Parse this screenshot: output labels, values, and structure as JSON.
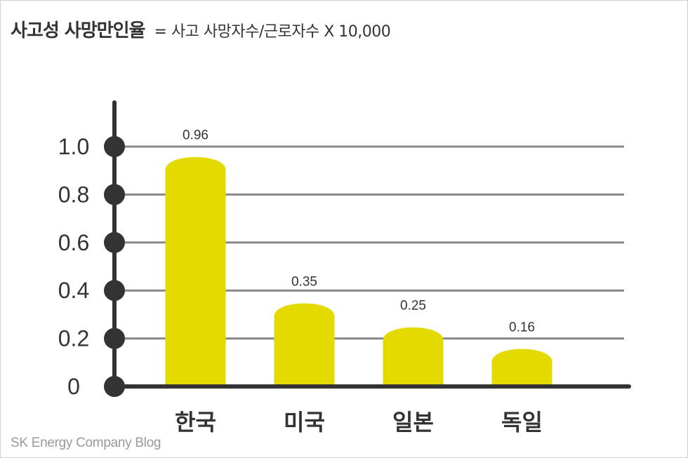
{
  "title": "사고성 사망만인율",
  "formula": "= 사고 사망자수/근로자수 X 10,000",
  "credit": "SK Energy Company Blog",
  "colors": {
    "bar": "#e3db00",
    "axis": "#333333",
    "grid": "#888888",
    "text": "#333333"
  },
  "chart_data": {
    "type": "bar",
    "title": "사고성 사망만인율",
    "categories": [
      "한국",
      "미국",
      "일본",
      "독일"
    ],
    "values": [
      0.96,
      0.35,
      0.25,
      0.16
    ],
    "value_labels": [
      "0.96",
      "0.35",
      "0.25",
      "0.16"
    ],
    "yticks": [
      0,
      0.2,
      0.4,
      0.6,
      0.8,
      1.0
    ],
    "ytick_labels": [
      "0",
      "0.2",
      "0.4",
      "0.6",
      "0.8",
      "1.0"
    ],
    "ylim": [
      0,
      1.0
    ],
    "xlabel": "",
    "ylabel": "",
    "grid": true
  }
}
